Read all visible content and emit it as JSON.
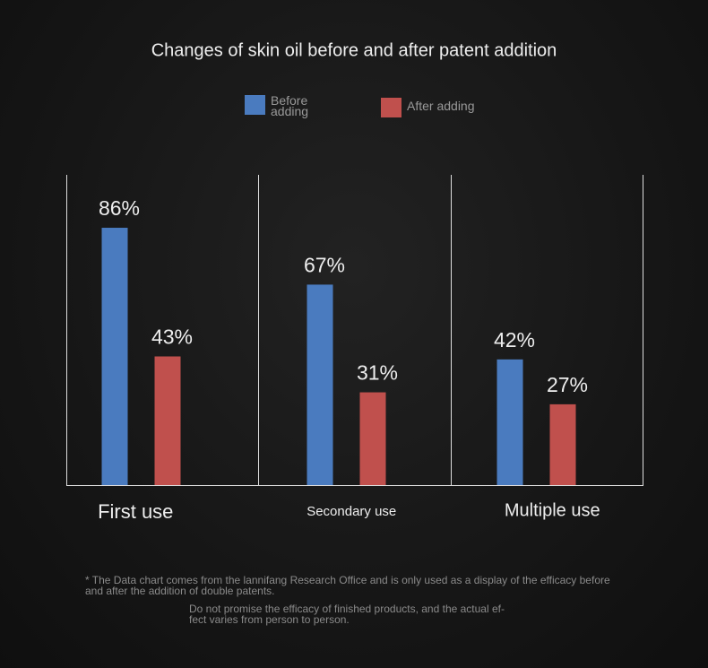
{
  "chart_data": {
    "type": "bar",
    "title": "Changes of skin oil before and after patent addition",
    "categories": [
      "First use",
      "Secondary use",
      "Multiple use"
    ],
    "series": [
      {
        "name": "Before adding",
        "color": "#4a7bbf",
        "values": [
          86,
          67,
          42
        ],
        "value_labels": [
          "86%",
          "67%",
          "42%"
        ]
      },
      {
        "name": "After adding",
        "color": "#c0504d",
        "values": [
          43,
          31,
          27
        ],
        "value_labels": [
          "43%",
          "31%",
          "27%"
        ]
      }
    ],
    "ylim": [
      0,
      100
    ],
    "notes": [
      "* The Data chart comes from the lannifang Research Office and is only used as a display of the efficacy before and after the addition of double patents.",
      "Do not promise the efficacy of finished products, and the actual ef-fect varies from person to person."
    ]
  }
}
